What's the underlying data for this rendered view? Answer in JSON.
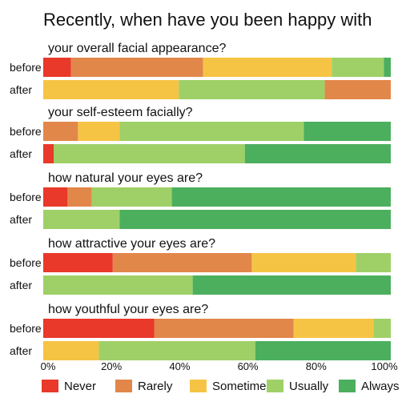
{
  "chart_data": {
    "type": "bar",
    "orientation": "horizontal",
    "stacked": true,
    "title": "Recently, when have you been happy with",
    "row_labels": [
      "before",
      "after"
    ],
    "segments": [
      "Never",
      "Rarely",
      "Sometimes",
      "Usually",
      "Always"
    ],
    "colors": {
      "Never": "#e8392a",
      "Rarely": "#e2874a",
      "Sometimes": "#f6c444",
      "Usually": "#9fd067",
      "Always": "#4caf5e"
    },
    "groups": [
      {
        "question": "your overall facial appearance?",
        "before": [
          8,
          38,
          37,
          15,
          2
        ],
        "after": [
          0,
          19,
          39,
          42,
          0
        ],
        "after_order": [
          0,
          2,
          3,
          4,
          1
        ]
      },
      {
        "question": "your self-esteem facially?",
        "before": [
          0,
          10,
          12,
          53,
          25
        ],
        "after": [
          3,
          0,
          0,
          55,
          42
        ]
      },
      {
        "question": "how natural your eyes are?",
        "before": [
          7,
          7,
          0,
          23,
          63
        ],
        "after": [
          0,
          0,
          0,
          22,
          78
        ]
      },
      {
        "question": "how attractive your eyes are?",
        "before": [
          20,
          40,
          30,
          10,
          0
        ],
        "after": [
          0,
          0,
          0,
          43,
          57
        ]
      },
      {
        "question": "how youthful your eyes are?",
        "before": [
          32,
          40,
          23,
          5,
          0
        ],
        "after": [
          0,
          0,
          16,
          45,
          39
        ]
      }
    ],
    "x_ticks": [
      "0%",
      "20%",
      "40%",
      "60%",
      "80%",
      "100%"
    ],
    "xlim": [
      0,
      100
    ],
    "legend": [
      "Never",
      "Rarely",
      "Sometimes",
      "Usually",
      "Always"
    ],
    "legend_position": "bottom",
    "grid": false
  }
}
